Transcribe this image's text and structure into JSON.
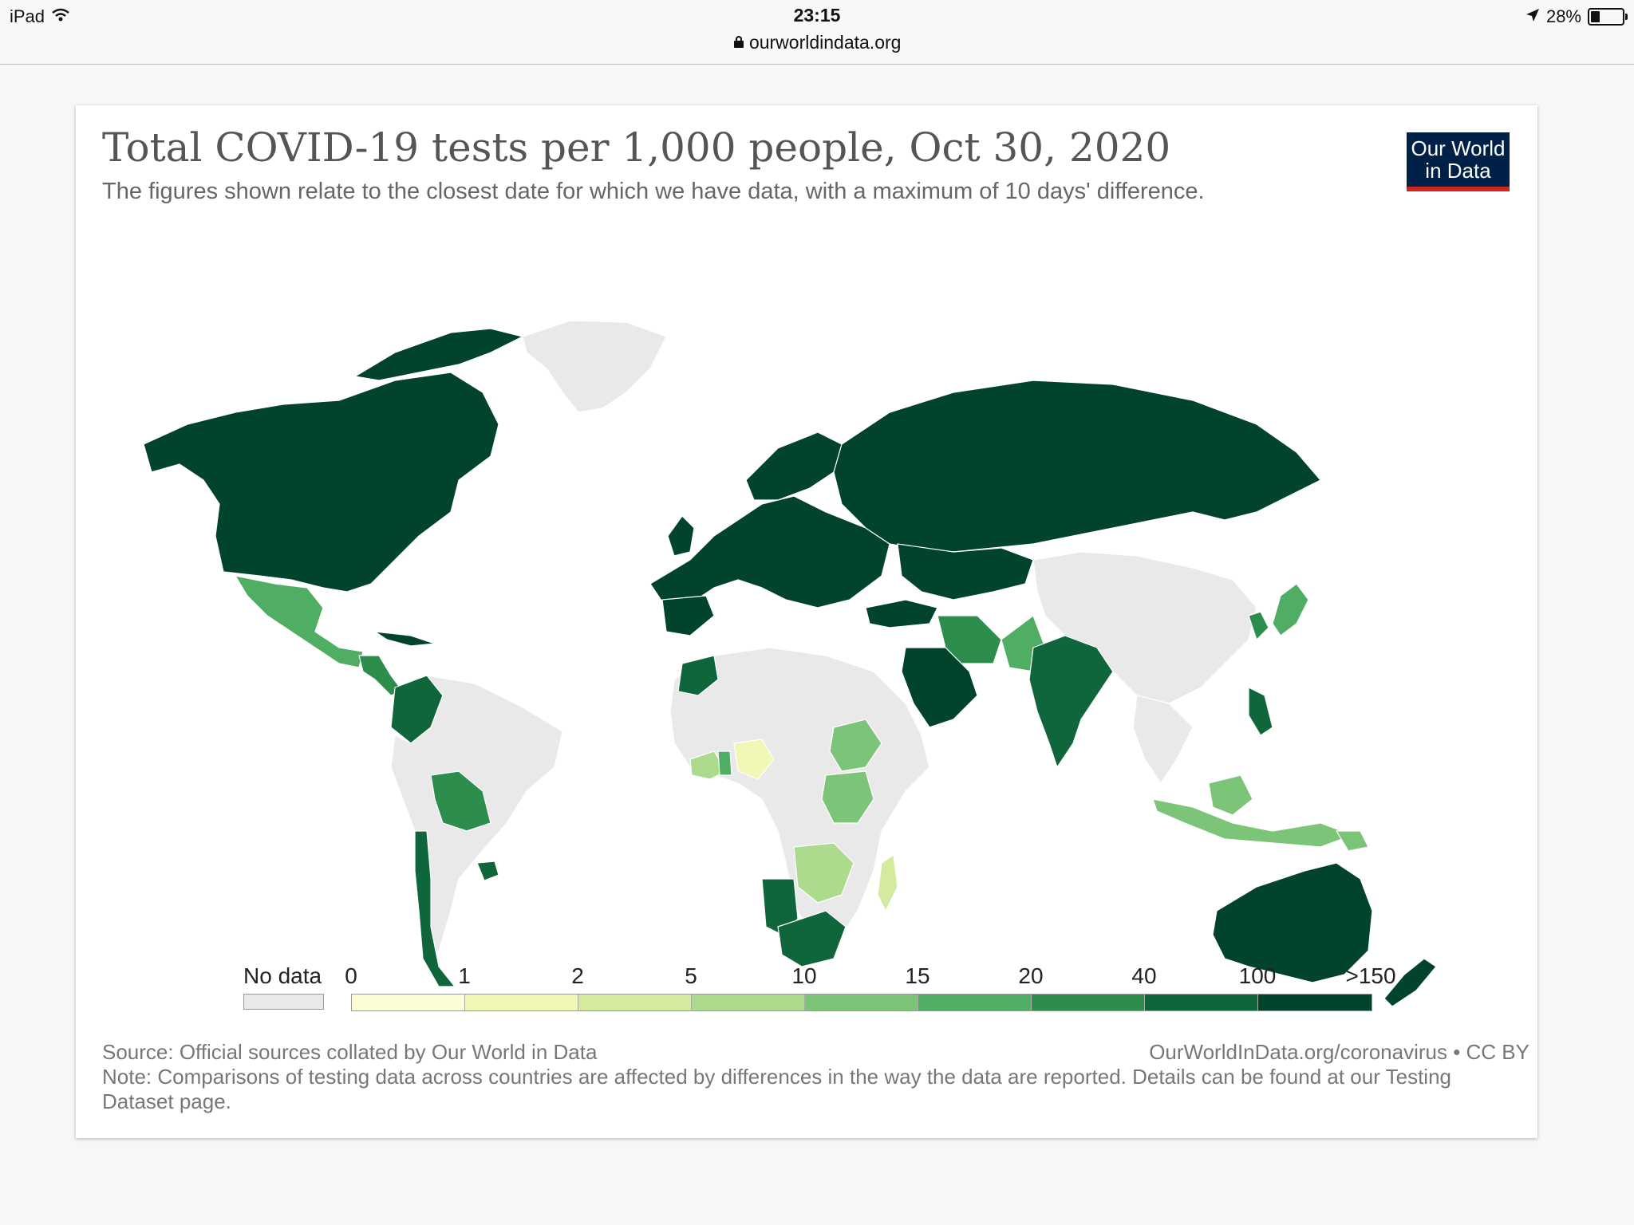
{
  "status_bar": {
    "device": "iPad",
    "time": "23:15",
    "url": "ourworldindata.org",
    "battery_text": "28%",
    "battery_level": 0.28,
    "icons": [
      "wifi-icon",
      "lock-icon",
      "location-arrow-icon",
      "battery-icon"
    ]
  },
  "chart": {
    "title": "Total COVID-19 tests per 1,000 people, Oct 30, 2020",
    "subtitle": "The figures shown relate to the closest date for which we have data, with a maximum of 10 days' difference.",
    "logo_line1": "Our World",
    "logo_line2": "in Data",
    "logo_colors": {
      "background": "#002147",
      "underline": "#ce261e"
    }
  },
  "legend": {
    "no_data_label": "No data",
    "no_data_color": "#e9e9e9",
    "ticks": [
      "0",
      "1",
      "2",
      "5",
      "10",
      "15",
      "20",
      "40",
      "100",
      ">150"
    ],
    "colors": [
      "#fcfdd5",
      "#f1f8b6",
      "#d4eb9e",
      "#acdb8d",
      "#7cc478",
      "#4fae64",
      "#2d8d4c",
      "#10663b",
      "#02432e"
    ]
  },
  "footer": {
    "source": "Source: Official sources collated by Our World in Data",
    "attribution": "OurWorldInData.org/coronavirus • CC BY",
    "note": "Note: Comparisons of testing data across countries are affected by differences in the way the data are reported. Details can be found at our Testing Dataset page."
  }
}
